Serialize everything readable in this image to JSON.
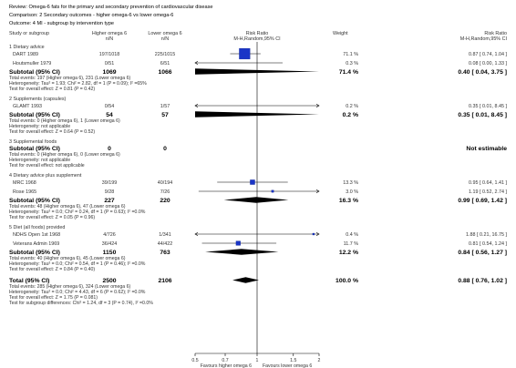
{
  "header": {
    "review": "Review:  Omega-6 fats for the primary and secondary prevention of cardiovascular disease",
    "comparison": "Comparison:  2 Secondary outcomes - higher omega-6 vs lower omega-6",
    "outcome": "Outcome:  4 MI - subgroup by intervention type"
  },
  "columns": {
    "study": "Study or subgroup",
    "higher": "Higher omega 6",
    "higher_sub": "n/N",
    "lower": "Lower omega 6",
    "lower_sub": "n/N",
    "rr": "Risk Ratio",
    "rr_sub": "M-H,Random,95% CI",
    "weight": "Weight",
    "rr2": "Risk Ratio",
    "rr2_sub": "M-H,Random,95% CI"
  },
  "chart_data": {
    "type": "forest",
    "xscale": "log",
    "xlim": [
      0.5,
      2
    ],
    "ticks": [
      "0.5",
      "0.7",
      "1",
      "1.5",
      "2"
    ],
    "xlabel_left": "Favours higher omega 6",
    "xlabel_right": "Favours lower omega 6",
    "groups": [
      {
        "title": "1 Dietary advice",
        "studies": [
          {
            "name": "DART 1989",
            "higher": "197/1018",
            "lower": "225/1015",
            "weight": "71.1 %",
            "ci_text": "0.87 [ 0.74, 1.04 ]",
            "rr": 0.87,
            "lo": 0.74,
            "hi": 1.04
          },
          {
            "name": "Houtsmuller 1979",
            "higher": "0/51",
            "lower": "6/51",
            "weight": "0.3 %",
            "ci_text": "0.08 [ 0.00, 1.33 ]",
            "rr": 0.08,
            "lo": 0.0,
            "hi": 1.33
          }
        ],
        "subtotal": {
          "label": "Subtotal (95% CI)",
          "higher": "1069",
          "lower": "1066",
          "weight": "71.4 %",
          "ci_text": "0.40 [ 0.04, 3.75 ]",
          "rr": 0.4,
          "lo": 0.04,
          "hi": 3.75
        },
        "notes": [
          "Total events: 197 (Higher omega 6), 231 (Lower omega 6)",
          "Heterogeneity: Tau² = 1.93; Chi² = 2.82, df = 1 (P = 0.09); I² =65%",
          "Test for overall effect: Z = 0.81 (P = 0.42)"
        ]
      },
      {
        "title": "2 Supplements (capsules)",
        "studies": [
          {
            "name": "GLAMT 1993",
            "higher": "0/54",
            "lower": "1/57",
            "weight": "0.2 %",
            "ci_text": "0.35 [ 0.01, 8.45 ]",
            "rr": 0.35,
            "lo": 0.01,
            "hi": 8.45
          }
        ],
        "subtotal": {
          "label": "Subtotal (95% CI)",
          "higher": "54",
          "lower": "57",
          "weight": "0.2 %",
          "ci_text": "0.35 [ 0.01, 8.45 ]",
          "rr": 0.35,
          "lo": 0.01,
          "hi": 8.45
        },
        "notes": [
          "Total events: 0 (Higher omega 6), 1 (Lower omega 6)",
          "Heterogeneity: not applicable",
          "Test for overall effect: Z = 0.64 (P = 0.52)"
        ]
      },
      {
        "title": "3 Supplemental foods",
        "studies": [],
        "subtotal": {
          "label": "Subtotal (95% CI)",
          "higher": "0",
          "lower": "0",
          "weight": "",
          "ci_text": "Not estimable",
          "rr": null,
          "lo": null,
          "hi": null
        },
        "notes": [
          "Total events: 0 (Higher omega 6), 0 (Lower omega 6)",
          "Heterogeneity: not applicable",
          "Test for overall effect: not applicable"
        ]
      },
      {
        "title": "4 Dietary advice plus supplement",
        "studies": [
          {
            "name": "MRC 1968",
            "higher": "39/199",
            "lower": "40/194",
            "weight": "13.3 %",
            "ci_text": "0.95 [ 0.64, 1.41 ]",
            "rr": 0.95,
            "lo": 0.64,
            "hi": 1.41
          },
          {
            "name": "Rose 1965",
            "higher": "9/28",
            "lower": "7/26",
            "weight": "3.0 %",
            "ci_text": "1.19 [ 0.52, 2.74 ]",
            "rr": 1.19,
            "lo": 0.52,
            "hi": 2.74
          }
        ],
        "subtotal": {
          "label": "Subtotal (95% CI)",
          "higher": "227",
          "lower": "220",
          "weight": "16.3 %",
          "ci_text": "0.99 [ 0.69, 1.42 ]",
          "rr": 0.99,
          "lo": 0.69,
          "hi": 1.42
        },
        "notes": [
          "Total events: 48 (Higher omega 6), 47 (Lower omega 6)",
          "Heterogeneity: Tau² = 0.0; Chi² = 0.24, df = 1 (P = 0.63); I² =0.0%",
          "Test for overall effect: Z = 0.05 (P = 0.96)"
        ]
      },
      {
        "title": "5 Diet (all foods) provided",
        "studies": [
          {
            "name": "NDHS Open 1st 1968",
            "higher": "4/726",
            "lower": "1/341",
            "weight": "0.4 %",
            "ci_text": "1.88 [ 0.21, 16.75 ]",
            "rr": 1.88,
            "lo": 0.21,
            "hi": 16.75
          },
          {
            "name": "Veterans Admin 1969",
            "higher": "36/424",
            "lower": "44/422",
            "weight": "11.7 %",
            "ci_text": "0.81 [ 0.54, 1.24 ]",
            "rr": 0.81,
            "lo": 0.54,
            "hi": 1.24
          }
        ],
        "subtotal": {
          "label": "Subtotal (95% CI)",
          "higher": "1150",
          "lower": "763",
          "weight": "12.2 %",
          "ci_text": "0.84 [ 0.56, 1.27 ]",
          "rr": 0.84,
          "lo": 0.56,
          "hi": 1.27
        },
        "notes": [
          "Total events: 40 (Higher omega 6), 45 (Lower omega 6)",
          "Heterogeneity: Tau² = 0.0; Chi² = 0.54, df = 1 (P = 0.46); I² =0.0%",
          "Test for overall effect: Z = 0.84 (P = 0.40)"
        ]
      }
    ],
    "total": {
      "label": "Total (95% CI)",
      "higher": "2500",
      "lower": "2106",
      "weight": "100.0 %",
      "ci_text": "0.88 [ 0.76, 1.02 ]",
      "rr": 0.88,
      "lo": 0.76,
      "hi": 1.02
    },
    "total_notes": [
      "Total events: 285 (Higher omega 6), 324 (Lower omega 6)",
      "Heterogeneity: Tau² = 0.0; Chi² = 4.43, df = 6 (P = 0.62); I² =0.0%",
      "Test for overall effect: Z = 1.75 (P = 0.081)",
      "Test for subgroup differences: Chi² = 1.24, df = 3 (P = 0.74), I² =0.0%"
    ]
  }
}
